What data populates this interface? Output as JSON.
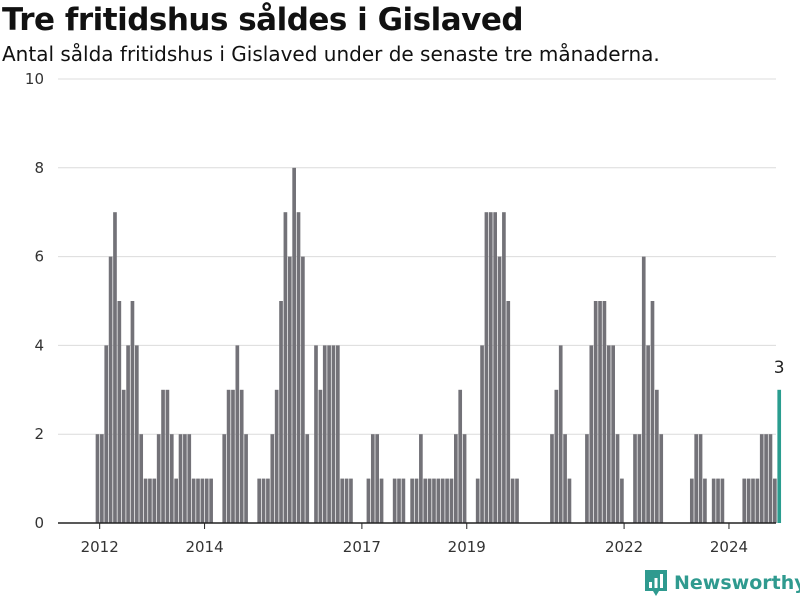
{
  "brand": {
    "name": "Newsworthy",
    "logo_icon": "newsworthy-logo-icon",
    "color": "#2f9a8f"
  },
  "chart_data": {
    "type": "bar",
    "title": "Tre fritidshus såldes i Gislaved",
    "subtitle": "Antal sålda fritidshus i Gislaved under de senaste tre månaderna.",
    "xlabel": "",
    "ylabel": "",
    "ylim": [
      0,
      10
    ],
    "yticks": [
      0,
      2,
      4,
      6,
      8,
      10
    ],
    "xticks": [
      "2012",
      "2014",
      "2017",
      "2019",
      "2022",
      "2024"
    ],
    "grid": true,
    "bar_color": "#737278",
    "highlight_color": "#2a9d8f",
    "last_value_label": "3",
    "period": "monthly, 2011-12 to 2024-10",
    "values": [
      2,
      2,
      4,
      6,
      7,
      5,
      3,
      4,
      5,
      4,
      2,
      1,
      1,
      1,
      2,
      3,
      3,
      2,
      1,
      2,
      2,
      2,
      1,
      1,
      1,
      1,
      1,
      0,
      0,
      2,
      3,
      3,
      4,
      3,
      2,
      0,
      0,
      1,
      1,
      1,
      2,
      3,
      5,
      7,
      6,
      8,
      7,
      6,
      2,
      0,
      4,
      3,
      4,
      4,
      4,
      4,
      1,
      1,
      1,
      0,
      0,
      0,
      1,
      2,
      2,
      1,
      0,
      0,
      1,
      1,
      1,
      0,
      1,
      1,
      2,
      1,
      1,
      1,
      1,
      1,
      1,
      1,
      2,
      3,
      2,
      0,
      0,
      1,
      4,
      7,
      7,
      7,
      6,
      7,
      5,
      1,
      1,
      0,
      0,
      0,
      0,
      0,
      0,
      0,
      2,
      3,
      4,
      2,
      1,
      0,
      0,
      0,
      2,
      4,
      5,
      5,
      5,
      4,
      4,
      2,
      1,
      0,
      0,
      2,
      2,
      6,
      4,
      5,
      3,
      2,
      0,
      0,
      0,
      0,
      0,
      0,
      1,
      2,
      2,
      1,
      0,
      1,
      1,
      1,
      0,
      0,
      0,
      0,
      1,
      1,
      1,
      1,
      2,
      2,
      2,
      1,
      3
    ]
  }
}
